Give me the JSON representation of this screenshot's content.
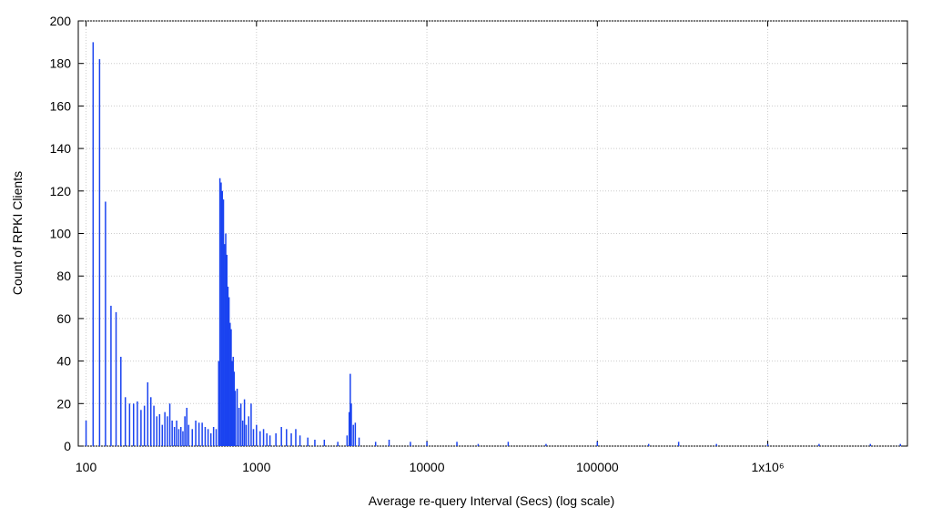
{
  "chart_data": {
    "type": "bar",
    "x_label": "Average re-query Interval (Secs) (log scale)",
    "y_label": "Count of RPKI Clients",
    "color": "#1a43f0",
    "x_log": true,
    "grid": true,
    "xlim": [
      90,
      6600000
    ],
    "ylim": [
      0,
      200
    ],
    "xticks": [
      100,
      1000,
      10000,
      100000,
      {
        "value": 1000000,
        "label": "1x10⁶"
      }
    ],
    "yticks": [
      0,
      20,
      40,
      60,
      80,
      100,
      120,
      140,
      160,
      180,
      200
    ],
    "x": [
      100,
      110,
      120,
      130,
      140,
      150,
      160,
      170,
      180,
      190,
      200,
      210,
      220,
      230,
      240,
      250,
      260,
      270,
      280,
      290,
      300,
      310,
      320,
      330,
      340,
      350,
      360,
      370,
      380,
      390,
      400,
      420,
      440,
      460,
      480,
      500,
      520,
      540,
      560,
      580,
      600,
      610,
      620,
      630,
      640,
      650,
      660,
      670,
      680,
      690,
      700,
      710,
      720,
      730,
      740,
      750,
      770,
      790,
      810,
      830,
      850,
      870,
      900,
      930,
      960,
      1000,
      1050,
      1100,
      1150,
      1200,
      1300,
      1400,
      1500,
      1600,
      1700,
      1800,
      2000,
      2200,
      2500,
      3000,
      3400,
      3500,
      3550,
      3600,
      3700,
      3800,
      4000,
      5000,
      6000,
      8000,
      10000,
      15000,
      20000,
      30000,
      50000,
      100000,
      200000,
      300000,
      500000,
      1000000,
      2000000,
      4000000,
      6000000
    ],
    "values": [
      12,
      190,
      182,
      115,
      66,
      63,
      42,
      23,
      20,
      20,
      21,
      17,
      19,
      30,
      23,
      19,
      14,
      15,
      10,
      16,
      14,
      20,
      12,
      9,
      12,
      8,
      9,
      7,
      14,
      18,
      10,
      8,
      12,
      11,
      11,
      9,
      8,
      6,
      9,
      8,
      40,
      126,
      124,
      120,
      116,
      95,
      100,
      90,
      75,
      70,
      58,
      55,
      40,
      42,
      35,
      26,
      27,
      18,
      20,
      12,
      22,
      10,
      14,
      20,
      8,
      10,
      7,
      8,
      6,
      5,
      6,
      9,
      8,
      6,
      8,
      5,
      4,
      3,
      3,
      2,
      5,
      16,
      34,
      20,
      10,
      11,
      4,
      2,
      3,
      2,
      2,
      2,
      1,
      2,
      1,
      2,
      1,
      2,
      1,
      1,
      1,
      1,
      1
    ]
  }
}
